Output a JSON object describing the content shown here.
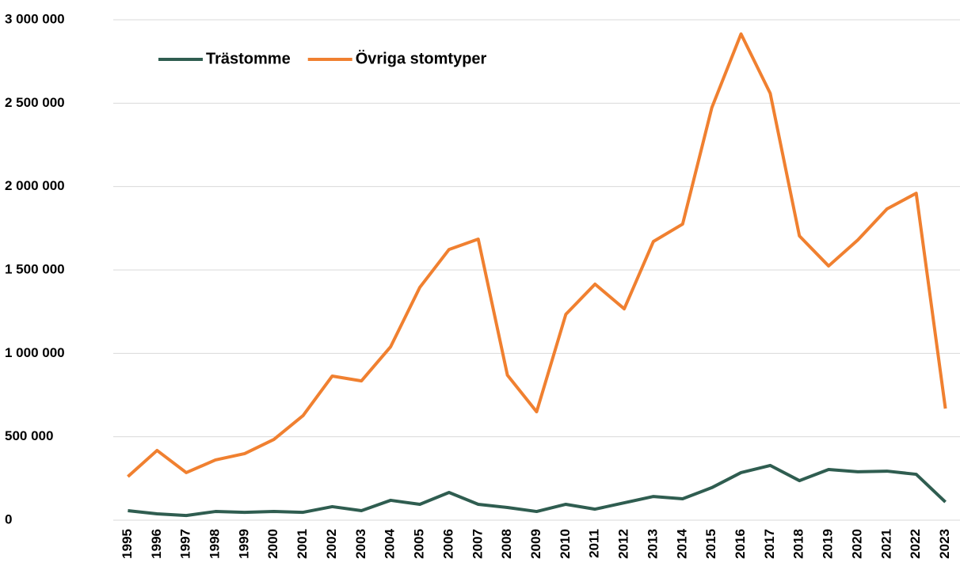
{
  "chart_data": {
    "type": "line",
    "categories": [
      "1995",
      "1996",
      "1997",
      "1998",
      "1999",
      "2000",
      "2001",
      "2002",
      "2003",
      "2004",
      "2005",
      "2006",
      "2007",
      "2008",
      "2009",
      "2010",
      "2011",
      "2012",
      "2013",
      "2014",
      "2015",
      "2016",
      "2017",
      "2018",
      "2019",
      "2020",
      "2021",
      "2022",
      "2023"
    ],
    "series": [
      {
        "name": "Trästomme",
        "color": "#2f5d50",
        "values": [
          57000,
          38000,
          28000,
          52000,
          47000,
          52000,
          47000,
          81000,
          57000,
          119000,
          95000,
          166000,
          95000,
          76000,
          52000,
          95000,
          66000,
          104000,
          142000,
          128000,
          195000,
          285000,
          328000,
          237000,
          304000,
          290000,
          294000,
          275000,
          109000
        ]
      },
      {
        "name": "Övriga stomtyper",
        "color": "#f08030",
        "values": [
          261000,
          418000,
          285000,
          361000,
          399000,
          484000,
          627000,
          864000,
          835000,
          1040000,
          1396000,
          1623000,
          1685000,
          869000,
          650000,
          1234000,
          1415000,
          1267000,
          1671000,
          1775000,
          2473000,
          2915000,
          2559000,
          1704000,
          1524000,
          1680000,
          1866000,
          1960000,
          669000
        ]
      }
    ],
    "ylim": [
      0,
      3000000
    ],
    "yticks": [
      0,
      {
        "value": 500000,
        "label": "500 000"
      },
      {
        "value": 1000000,
        "label": "1 000 000"
      },
      {
        "value": 1500000,
        "label": "1 500 000"
      },
      {
        "value": 2000000,
        "label": "2 000 000"
      },
      {
        "value": 2500000,
        "label": "2 500 000"
      },
      {
        "value": 3000000,
        "label": "3 000 000"
      }
    ],
    "grid": true,
    "legend": "top-left"
  }
}
